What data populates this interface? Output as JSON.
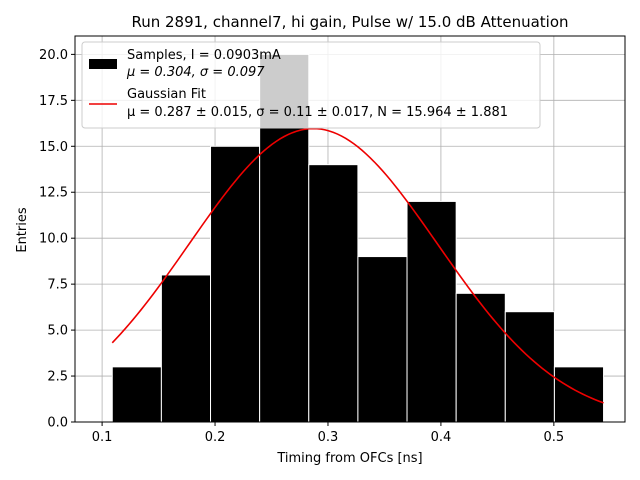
{
  "chart_data": {
    "type": "bar",
    "title": "Run 2891, channel7, hi gain, Pulse w/ 15.0 dB Attenuation",
    "xlabel": "Timing from OFCs [ns]",
    "ylabel": "Entries",
    "xlim": [
      0.076,
      0.563
    ],
    "ylim": [
      0,
      21
    ],
    "xticks": [
      0.1,
      0.2,
      0.3,
      0.4,
      0.5
    ],
    "yticks": [
      0.0,
      2.5,
      5.0,
      7.5,
      10.0,
      12.5,
      15.0,
      17.5,
      20.0
    ],
    "xtick_labels": [
      "0.1",
      "0.2",
      "0.3",
      "0.4",
      "0.5"
    ],
    "ytick_labels": [
      "0.0",
      "2.5",
      "5.0",
      "7.5",
      "10.0",
      "12.5",
      "15.0",
      "17.5",
      "20.0"
    ],
    "grid": true,
    "legend_position": "top-left",
    "histogram": {
      "bin_edges": [
        0.109,
        0.1525,
        0.196,
        0.2395,
        0.283,
        0.3265,
        0.37,
        0.4135,
        0.457,
        0.5005,
        0.544
      ],
      "counts": [
        3,
        8,
        15,
        20,
        14,
        9,
        12,
        7,
        6,
        3
      ],
      "color": "#000000",
      "edge_color": "#ffffff",
      "legend_line1": "Samples, I = 0.0903mA",
      "legend_line2_mu": "μ = 0.304, ",
      "legend_line2_sigma": "σ = 0.097"
    },
    "fit": {
      "mu": 0.287,
      "sigma": 0.11,
      "N": 15.964,
      "x_range": [
        0.109,
        0.544
      ],
      "color": "#ee0000",
      "legend_line1": "Gaussian Fit",
      "legend_line2": "μ = 0.287 ± 0.015, σ = 0.11 ± 0.017, N = 15.964 ± 1.881"
    }
  }
}
